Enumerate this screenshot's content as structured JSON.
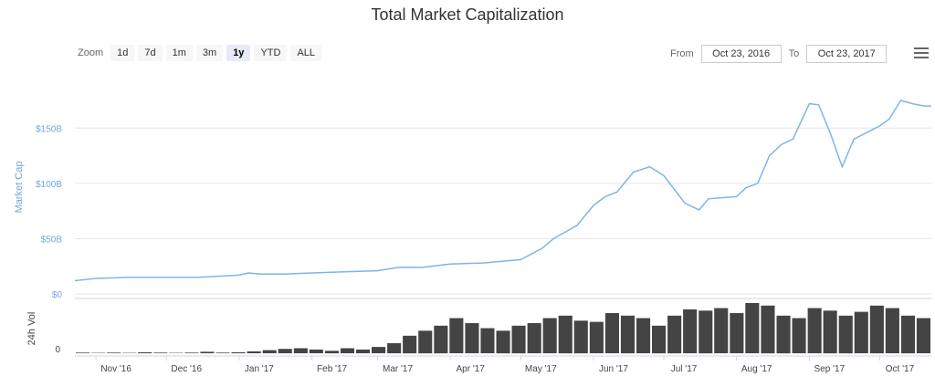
{
  "title": "Total Market Capitalization",
  "zoom": {
    "label": "Zoom",
    "buttons": [
      "1d",
      "7d",
      "1m",
      "3m",
      "1y",
      "YTD",
      "ALL"
    ],
    "selected": "1y"
  },
  "range": {
    "from_label": "From",
    "from_value": "Oct 23, 2016",
    "to_label": "To",
    "to_value": "Oct 23, 2017"
  },
  "menu_icon": "hamburger-menu-icon",
  "colors": {
    "line": "#7cb5ec",
    "volume": "#444444",
    "grid": "#e6e6e6"
  },
  "chart_data": [
    {
      "type": "line",
      "title": "Total Market Capitalization",
      "ylabel": "Market Cap",
      "yticks": [
        "$0",
        "$50B",
        "$100B",
        "$150B"
      ],
      "ylim": [
        0,
        175
      ],
      "xlabels": [
        "Nov '16",
        "Dec '16",
        "Jan '17",
        "Feb '17",
        "Mar '17",
        "Apr '17",
        "May '17",
        "Jun '17",
        "Jul '17",
        "Aug '17",
        "Sep '17",
        "Oct '17"
      ],
      "x": [
        "2016-10-23",
        "2016-11-01",
        "2016-11-15",
        "2016-12-01",
        "2016-12-15",
        "2017-01-01",
        "2017-01-05",
        "2017-01-10",
        "2017-01-20",
        "2017-02-01",
        "2017-02-15",
        "2017-03-01",
        "2017-03-10",
        "2017-03-20",
        "2017-04-01",
        "2017-04-15",
        "2017-05-01",
        "2017-05-10",
        "2017-05-15",
        "2017-05-25",
        "2017-06-01",
        "2017-06-06",
        "2017-06-11",
        "2017-06-18",
        "2017-06-25",
        "2017-07-01",
        "2017-07-10",
        "2017-07-16",
        "2017-07-20",
        "2017-08-01",
        "2017-08-05",
        "2017-08-10",
        "2017-08-15",
        "2017-08-20",
        "2017-08-25",
        "2017-09-01",
        "2017-09-05",
        "2017-09-10",
        "2017-09-15",
        "2017-09-20",
        "2017-10-01",
        "2017-10-05",
        "2017-10-10",
        "2017-10-15",
        "2017-10-20",
        "2017-10-23"
      ],
      "series": [
        {
          "values": [
            12,
            14,
            15,
            15,
            15,
            17,
            19,
            18,
            18,
            19,
            20,
            21,
            24,
            24,
            27,
            28,
            31,
            41,
            50,
            62,
            80,
            88,
            92,
            110,
            115,
            107,
            82,
            76,
            86,
            88,
            96,
            100,
            125,
            135,
            140,
            172,
            171,
            145,
            115,
            140,
            152,
            158,
            175,
            172,
            170,
            170
          ]
        }
      ]
    },
    {
      "type": "bar",
      "ylabel": "24h Vol",
      "yticks": [
        "0"
      ],
      "xlabels": [
        "Nov '16",
        "Dec '16",
        "Jan '17",
        "Feb '17",
        "Mar '17",
        "Apr '17",
        "May '17",
        "Jun '17",
        "Jul '17",
        "Aug '17",
        "Sep '17",
        "Oct '17"
      ],
      "series": [
        {
          "values": [
            0.5,
            0.3,
            0.5,
            0.3,
            0.8,
            0.5,
            0.3,
            0.5,
            1.2,
            0.5,
            0.8,
            1.5,
            2.5,
            3.5,
            4,
            3,
            2,
            4,
            3,
            5,
            8,
            14,
            18,
            22,
            28,
            24,
            20,
            18,
            22,
            24,
            28,
            30,
            26,
            25,
            32,
            30,
            28,
            22,
            30,
            35,
            34,
            36,
            32,
            40,
            38,
            30,
            28,
            36,
            34,
            30,
            33,
            38,
            36,
            30,
            28
          ]
        }
      ]
    }
  ]
}
